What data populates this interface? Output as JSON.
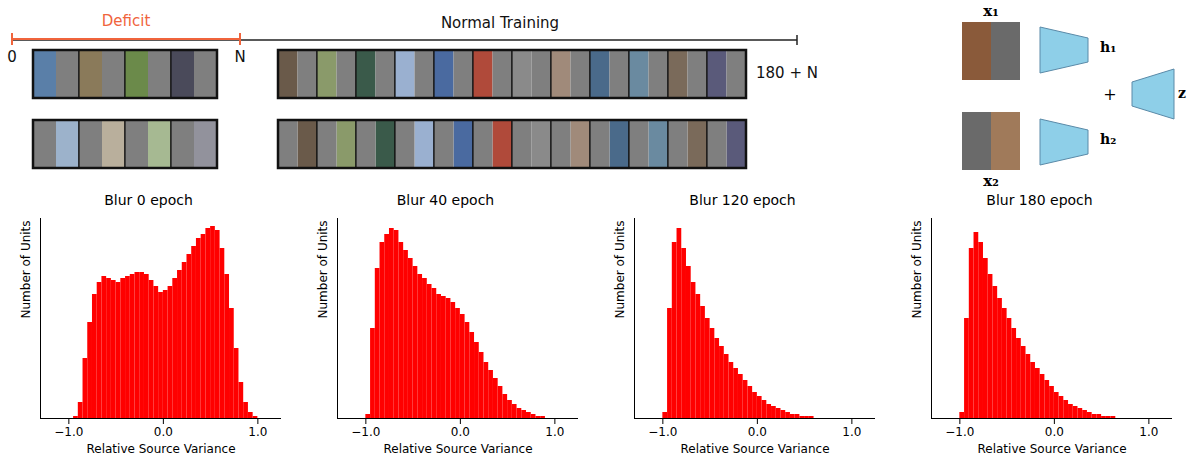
{
  "diagram": {
    "timeline": {
      "deficit_label": "Deficit",
      "training_label": "Normal Training",
      "start": "0",
      "deficit_end": "N",
      "end": "180 + N"
    },
    "network": {
      "input_1": "x₁",
      "input_2": "x₂",
      "hidden_1": "h₁",
      "hidden_2": "h₂",
      "combine": "+",
      "output": "z"
    }
  },
  "chart_data": [
    {
      "type": "histogram",
      "title": "Blur 0 epoch",
      "xlabel": "Relative Source Variance",
      "ylabel": "Number of Units",
      "color": "#ff0000",
      "xlim": [
        -1.3,
        1.25
      ],
      "xticks": [
        -1,
        0,
        1
      ],
      "ylim": [
        0,
        100
      ],
      "tick_labels": "x",
      "bins": [
        -1.05,
        -1.0,
        -0.95,
        -0.9,
        -0.85,
        -0.8,
        -0.75,
        -0.7,
        -0.65,
        -0.6,
        -0.55,
        -0.5,
        -0.45,
        -0.4,
        -0.35,
        -0.3,
        -0.25,
        -0.2,
        -0.15,
        -0.1,
        -0.05,
        0,
        0.05,
        0.1,
        0.15,
        0.2,
        0.25,
        0.3,
        0.35,
        0.4,
        0.45,
        0.5,
        0.55,
        0.6,
        0.65,
        0.7,
        0.75,
        0.8,
        0.85,
        0.9,
        0.95,
        1.0,
        1.05,
        1.1,
        1.15
      ],
      "values": [
        0,
        0,
        1,
        8,
        30,
        48,
        62,
        68,
        71,
        70,
        69,
        68,
        70,
        71,
        72,
        73,
        73,
        72,
        69,
        66,
        63,
        64,
        66,
        70,
        74,
        78,
        82,
        86,
        90,
        92,
        95,
        96,
        94,
        85,
        72,
        55,
        35,
        18,
        8,
        3,
        1,
        0,
        0,
        0
      ]
    },
    {
      "type": "histogram",
      "title": "Blur 40 epoch",
      "xlabel": "Relative Source Variance",
      "ylabel": "Number of Units",
      "color": "#ff0000",
      "xlim": [
        -1.3,
        1.25
      ],
      "xticks": [
        -1,
        0,
        1
      ],
      "ylim": [
        0,
        100
      ],
      "tick_labels": "x",
      "bins": [
        -1.05,
        -1.0,
        -0.95,
        -0.9,
        -0.85,
        -0.8,
        -0.75,
        -0.7,
        -0.65,
        -0.6,
        -0.55,
        -0.5,
        -0.45,
        -0.4,
        -0.35,
        -0.3,
        -0.25,
        -0.2,
        -0.15,
        -0.1,
        -0.05,
        0,
        0.05,
        0.1,
        0.15,
        0.2,
        0.25,
        0.3,
        0.35,
        0.4,
        0.45,
        0.5,
        0.55,
        0.6,
        0.65,
        0.7,
        0.75,
        0.8,
        0.85,
        0.9,
        0.95,
        1.0,
        1.05,
        1.1,
        1.15
      ],
      "values": [
        0,
        2,
        45,
        75,
        88,
        92,
        95,
        94,
        88,
        84,
        80,
        76,
        72,
        70,
        67,
        65,
        62,
        61,
        60,
        58,
        55,
        52,
        48,
        43,
        38,
        33,
        28,
        24,
        20,
        16,
        12,
        9,
        7,
        5,
        4,
        3,
        2,
        1,
        1,
        0,
        0,
        0,
        0,
        0
      ]
    },
    {
      "type": "histogram",
      "title": "Blur 120 epoch",
      "xlabel": "Relative Source Variance",
      "ylabel": "Number of Units",
      "color": "#ff0000",
      "xlim": [
        -1.3,
        1.25
      ],
      "xticks": [
        -1,
        0,
        1
      ],
      "ylim": [
        0,
        100
      ],
      "tick_labels": "x",
      "bins": [
        -1.05,
        -1.0,
        -0.95,
        -0.9,
        -0.85,
        -0.8,
        -0.75,
        -0.7,
        -0.65,
        -0.6,
        -0.55,
        -0.5,
        -0.45,
        -0.4,
        -0.35,
        -0.3,
        -0.25,
        -0.2,
        -0.15,
        -0.1,
        -0.05,
        0,
        0.05,
        0.1,
        0.15,
        0.2,
        0.25,
        0.3,
        0.35,
        0.4,
        0.45,
        0.5,
        0.55,
        0.6,
        0.65,
        0.7,
        0.75,
        0.8,
        0.85,
        0.9,
        0.95,
        1.0,
        1.05,
        1.1,
        1.15
      ],
      "values": [
        0,
        3,
        55,
        88,
        95,
        85,
        76,
        68,
        62,
        56,
        50,
        45,
        40,
        36,
        32,
        28,
        25,
        22,
        19,
        16,
        13,
        11,
        9,
        7,
        6,
        5,
        4,
        3,
        2,
        2,
        1,
        1,
        1,
        0,
        0,
        0,
        0,
        0,
        0,
        0,
        0,
        0,
        0,
        0
      ]
    },
    {
      "type": "histogram",
      "title": "Blur 180 epoch",
      "xlabel": "Relative Source Variance",
      "ylabel": "Number of Units",
      "color": "#ff0000",
      "xlim": [
        -1.3,
        1.25
      ],
      "xticks": [
        -1,
        0,
        1
      ],
      "ylim": [
        0,
        100
      ],
      "tick_labels": "x",
      "bins": [
        -1.05,
        -1.0,
        -0.95,
        -0.9,
        -0.85,
        -0.8,
        -0.75,
        -0.7,
        -0.65,
        -0.6,
        -0.55,
        -0.5,
        -0.45,
        -0.4,
        -0.35,
        -0.3,
        -0.25,
        -0.2,
        -0.15,
        -0.1,
        -0.05,
        0,
        0.05,
        0.1,
        0.15,
        0.2,
        0.25,
        0.3,
        0.35,
        0.4,
        0.45,
        0.5,
        0.55,
        0.6,
        0.65,
        0.7,
        0.75,
        0.8,
        0.85,
        0.9,
        0.95,
        1.0,
        1.05,
        1.1,
        1.15
      ],
      "values": [
        0,
        3,
        50,
        85,
        93,
        88,
        80,
        72,
        66,
        60,
        55,
        50,
        45,
        40,
        36,
        32,
        28,
        25,
        22,
        19,
        16,
        13,
        11,
        9,
        7,
        6,
        5,
        4,
        3,
        2,
        2,
        1,
        1,
        1,
        0,
        0,
        0,
        0,
        0,
        0,
        0,
        0,
        0,
        0
      ]
    }
  ]
}
